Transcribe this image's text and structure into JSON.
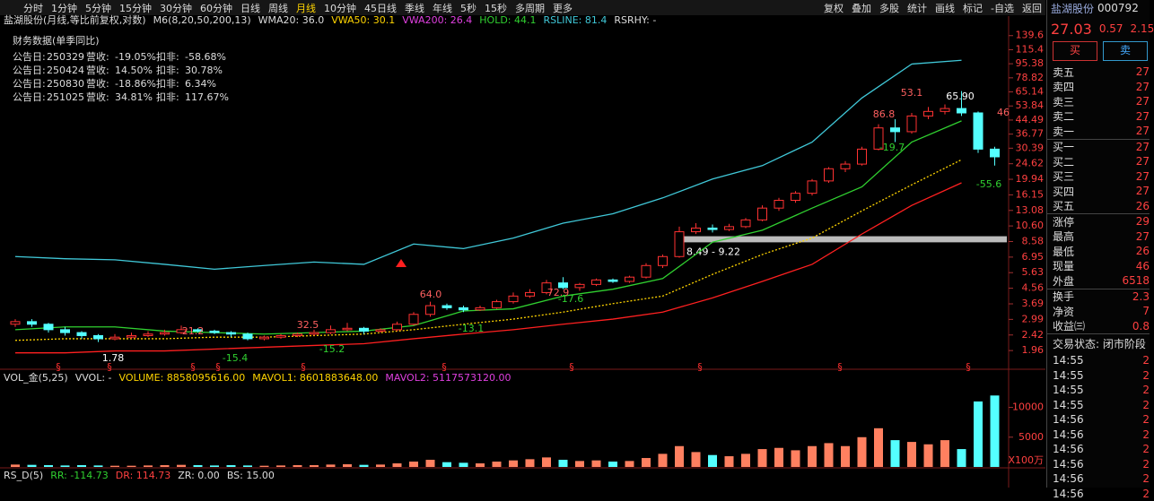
{
  "toolbar": {
    "periods": [
      "分时",
      "1分钟",
      "5分钟",
      "15分钟",
      "30分钟",
      "60分钟",
      "日线",
      "周线",
      "月线",
      "10分钟",
      "45日线",
      "季线",
      "年线",
      "5秒",
      "15秒",
      "多周期",
      "更多"
    ],
    "selected": "月线",
    "tools": [
      "复权",
      "叠加",
      "多股",
      "统计",
      "画线",
      "标记",
      "-自选",
      "返回"
    ]
  },
  "indicators": {
    "title": "盐湖股份(月线,等比前复权,对数)",
    "items": [
      {
        "text": "M6(8,20,50,200,13)",
        "color": "#dddddd"
      },
      {
        "text": "WMA20: 36.0",
        "color": "#dddddd"
      },
      {
        "text": "VWA50: 30.1",
        "color": "#ffd400"
      },
      {
        "text": "VWA200: 26.4",
        "color": "#e040e0"
      },
      {
        "text": "HOLD: 44.1",
        "color": "#30d030"
      },
      {
        "text": "RSLINE: 81.4",
        "color": "#40c8d8"
      },
      {
        "text": "RSRHY: -",
        "color": "#dddddd"
      }
    ]
  },
  "finance": {
    "title": "财务数据(单季同比)",
    "date_label": "公告日:",
    "rev_label": "营收:",
    "ded_label": "扣非:",
    "rows": [
      [
        "250329",
        "-19.05%",
        "-58.68%"
      ],
      [
        "250424",
        "14.50%",
        "30.78%"
      ],
      [
        "250830",
        "-18.86%",
        "6.34%"
      ],
      [
        "251025",
        "34.81%",
        "117.67%"
      ]
    ]
  },
  "chart": {
    "type": "candlestick",
    "log": true,
    "ylim": [
      1.76,
      161
    ],
    "yticks": [
      139.6,
      115.4,
      95.38,
      78.82,
      65.14,
      53.84,
      44.49,
      36.77,
      30.39,
      24.62,
      19.94,
      16.15,
      13.08,
      {
        "value": 10.6,
        "label": "10.60"
      },
      8.58,
      6.95,
      5.63,
      4.56,
      3.69,
      2.99,
      2.42,
      1.96
    ],
    "up_color": "#ff3232",
    "down_color": "#54ffff",
    "ohlc": [
      [
        2.8,
        3.0,
        2.7,
        2.9
      ],
      [
        2.9,
        3.0,
        2.7,
        2.8
      ],
      [
        2.8,
        2.85,
        2.5,
        2.6
      ],
      [
        2.6,
        2.7,
        2.4,
        2.5
      ],
      [
        2.5,
        2.55,
        2.3,
        2.4
      ],
      [
        2.4,
        2.45,
        2.2,
        2.3
      ],
      [
        2.3,
        2.45,
        2.25,
        2.35
      ],
      [
        2.35,
        2.5,
        2.3,
        2.4
      ],
      [
        2.4,
        2.55,
        2.35,
        2.45
      ],
      [
        2.45,
        2.6,
        2.4,
        2.5
      ],
      [
        2.5,
        2.75,
        2.45,
        2.6
      ],
      [
        2.6,
        2.65,
        2.5,
        2.55
      ],
      [
        2.55,
        2.6,
        2.45,
        2.5
      ],
      [
        2.5,
        2.55,
        2.35,
        2.45
      ],
      [
        2.45,
        2.5,
        2.25,
        2.3
      ],
      [
        2.3,
        2.4,
        2.25,
        2.35
      ],
      [
        2.35,
        2.45,
        2.3,
        2.4
      ],
      [
        2.4,
        2.5,
        2.35,
        2.45
      ],
      [
        2.45,
        2.6,
        2.4,
        2.5
      ],
      [
        2.5,
        2.75,
        2.45,
        2.6
      ],
      [
        2.6,
        2.85,
        2.55,
        2.65
      ],
      [
        2.65,
        2.7,
        2.45,
        2.55
      ],
      [
        2.55,
        2.65,
        2.5,
        2.6
      ],
      [
        2.6,
        2.9,
        2.55,
        2.8
      ],
      [
        2.8,
        3.3,
        2.75,
        3.2
      ],
      [
        3.2,
        3.8,
        3.1,
        3.6
      ],
      [
        3.6,
        3.7,
        3.4,
        3.5
      ],
      [
        3.5,
        3.6,
        3.3,
        3.4
      ],
      [
        3.4,
        3.6,
        3.35,
        3.5
      ],
      [
        3.5,
        3.9,
        3.45,
        3.8
      ],
      [
        3.8,
        4.3,
        3.7,
        4.1
      ],
      [
        4.1,
        4.5,
        4.0,
        4.3
      ],
      [
        4.3,
        5.1,
        4.2,
        4.9
      ],
      [
        4.9,
        5.3,
        4.5,
        4.6
      ],
      [
        4.6,
        4.9,
        4.4,
        4.8
      ],
      [
        4.8,
        5.2,
        4.7,
        5.1
      ],
      [
        5.1,
        5.2,
        4.9,
        5.0
      ],
      [
        5.0,
        5.4,
        4.9,
        5.3
      ],
      [
        5.3,
        6.4,
        5.2,
        6.2
      ],
      [
        6.2,
        7.2,
        6.0,
        7.0
      ],
      [
        7.0,
        10.5,
        6.9,
        9.8
      ],
      [
        9.8,
        11.0,
        9.5,
        10.3
      ],
      [
        10.3,
        10.8,
        9.7,
        10.1
      ],
      [
        10.1,
        10.9,
        9.9,
        10.5
      ],
      [
        10.5,
        11.8,
        10.3,
        11.5
      ],
      [
        11.5,
        14.0,
        11.3,
        13.5
      ],
      [
        13.5,
        15.5,
        13.0,
        15.0
      ],
      [
        15.0,
        17.0,
        14.5,
        16.5
      ],
      [
        16.5,
        20.0,
        16.0,
        19.5
      ],
      [
        19.5,
        23.5,
        19.0,
        23.0
      ],
      [
        23.0,
        25.5,
        22.0,
        24.5
      ],
      [
        24.5,
        31.0,
        24.0,
        30.0
      ],
      [
        30.0,
        42.0,
        29.5,
        40.0
      ],
      [
        40.0,
        45.0,
        33.0,
        38.0
      ],
      [
        38.0,
        49.0,
        37.0,
        47.0
      ],
      [
        47.0,
        53.1,
        45.0,
        50.0
      ],
      [
        50.0,
        55.0,
        48.0,
        52.0
      ],
      [
        52.0,
        65.9,
        47.0,
        49.0
      ],
      [
        49.0,
        50.0,
        28.5,
        30.0
      ],
      [
        30.0,
        31.0,
        24.0,
        27.03
      ]
    ],
    "line_step": 3,
    "lines": [
      {
        "color": "#40c8d8",
        "values": [
          7.0,
          6.8,
          6.7,
          6.3,
          5.9,
          6.2,
          6.5,
          6.3,
          8.3,
          7.8,
          9.0,
          11.0,
          12.5,
          15.5,
          20,
          24,
          33,
          60,
          95,
          100
        ]
      },
      {
        "color": "#30d030",
        "values": [
          2.6,
          2.7,
          2.7,
          2.55,
          2.5,
          2.45,
          2.5,
          2.55,
          2.75,
          3.35,
          3.45,
          4.1,
          4.5,
          5.2,
          8.5,
          10,
          13.5,
          18,
          33,
          44
        ]
      },
      {
        "color": "#ffd400",
        "dashed": true,
        "values": [
          2.25,
          2.3,
          2.3,
          2.3,
          2.35,
          2.35,
          2.4,
          2.45,
          2.6,
          2.8,
          3.0,
          3.3,
          3.7,
          4.1,
          5.5,
          7.2,
          9,
          13,
          18.5,
          26
        ]
      },
      {
        "color": "#ff2020",
        "values": [
          1.9,
          1.9,
          1.95,
          1.95,
          2.0,
          2.05,
          2.1,
          2.15,
          2.3,
          2.45,
          2.6,
          2.8,
          3.0,
          3.3,
          4.0,
          5.0,
          6.3,
          9.5,
          14,
          19
        ]
      }
    ],
    "zone": {
      "label": "8.49 - 9.22",
      "low": 8.49,
      "high": 9.22
    },
    "event_marker": "§",
    "annotations": [
      {
        "text": "1.78",
        "color": "#ffffff"
      },
      {
        "text": "21.2",
        "color": "#ff6060"
      },
      {
        "text": "-15.4",
        "color": "#30d030"
      },
      {
        "text": "32.5",
        "color": "#ff6060"
      },
      {
        "text": "-15.2",
        "color": "#30d030"
      },
      {
        "text": "64.0",
        "color": "#ff6060"
      },
      {
        "text": "-13.1",
        "color": "#30d030"
      },
      {
        "text": "72.9",
        "color": "#ff6060"
      },
      {
        "text": "-17.6",
        "color": "#30d030"
      },
      {
        "text": "86.8",
        "color": "#ff6060"
      },
      {
        "text": "-19.7",
        "color": "#30d030"
      },
      {
        "text": "53.1",
        "color": "#ff6060"
      },
      {
        "text": "65.90",
        "color": "#ffffff"
      },
      {
        "text": "-55.6",
        "color": "#30d030"
      },
      {
        "text": "46",
        "color": "#ff6060"
      }
    ]
  },
  "volume": {
    "type": "bar",
    "title": "VOL_金(5,25)",
    "items": [
      {
        "text": "VVOL: -",
        "color": "#dddddd"
      },
      {
        "text": "VOLUME: 8858095616.00",
        "color": "#ffd400"
      },
      {
        "text": "MAVOL1: 8601883648.00",
        "color": "#ffd400"
      },
      {
        "text": "MAVOL2: 5117573120.00",
        "color": "#e040e0"
      }
    ],
    "ylim": [
      0,
      14000
    ],
    "yticks": [
      10000,
      5000
    ],
    "unit": "X100万",
    "up_color": "#ff8060",
    "down_color": "#54ffff",
    "values": [
      400,
      350,
      300,
      250,
      300,
      250,
      200,
      200,
      250,
      300,
      350,
      300,
      250,
      300,
      250,
      200,
      250,
      300,
      300,
      400,
      450,
      350,
      400,
      600,
      900,
      1200,
      800,
      700,
      600,
      900,
      1100,
      1300,
      1600,
      1200,
      1000,
      1100,
      900,
      1000,
      1500,
      2200,
      3500,
      2500,
      2000,
      1800,
      2200,
      3000,
      3200,
      2800,
      3500,
      4000,
      3500,
      5000,
      6500,
      4500,
      4200,
      3800,
      4500,
      3000,
      11000,
      12000
    ]
  },
  "rs": {
    "title": "RS_D(5)",
    "items": [
      {
        "text": "RR: -114.73",
        "color": "#30d030"
      },
      {
        "text": "DR: 114.73",
        "color": "#ff4040"
      },
      {
        "text": "ZR: 0.00",
        "color": "#dddddd"
      },
      {
        "text": "BS: 15.00",
        "color": "#dddddd"
      }
    ]
  },
  "side": {
    "name": "盐湖股份",
    "code": "000792",
    "price": "27.03",
    "change": "0.57",
    "pct": "2.15",
    "buy": "买",
    "sell": "卖",
    "book": [
      [
        "卖五",
        "27"
      ],
      [
        "卖四",
        "27"
      ],
      [
        "卖三",
        "27"
      ],
      [
        "卖二",
        "27"
      ],
      [
        "卖一",
        "27"
      ],
      [
        "买一",
        "27"
      ],
      [
        "买二",
        "27"
      ],
      [
        "买三",
        "27"
      ],
      [
        "买四",
        "27"
      ],
      [
        "买五",
        "26"
      ]
    ],
    "stats": [
      [
        "涨停",
        "29"
      ],
      [
        "最高",
        "27"
      ],
      [
        "最低",
        "26"
      ],
      [
        "现量",
        "46"
      ],
      [
        "外盘",
        "6518"
      ]
    ],
    "fin": [
      [
        "换手",
        "2.3"
      ],
      [
        "净资",
        "7"
      ],
      [
        "收益㈢",
        "0.8"
      ]
    ],
    "status": "交易状态: 闭市阶段",
    "ticks": [
      [
        "14:55",
        "2"
      ],
      [
        "14:55",
        "2"
      ],
      [
        "14:55",
        "2"
      ],
      [
        "14:55",
        "2"
      ],
      [
        "14:56",
        "2"
      ],
      [
        "14:56",
        "2"
      ],
      [
        "14:56",
        "2"
      ],
      [
        "14:56",
        "2"
      ],
      [
        "14:56",
        "2"
      ],
      [
        "14:56",
        "2"
      ]
    ]
  }
}
